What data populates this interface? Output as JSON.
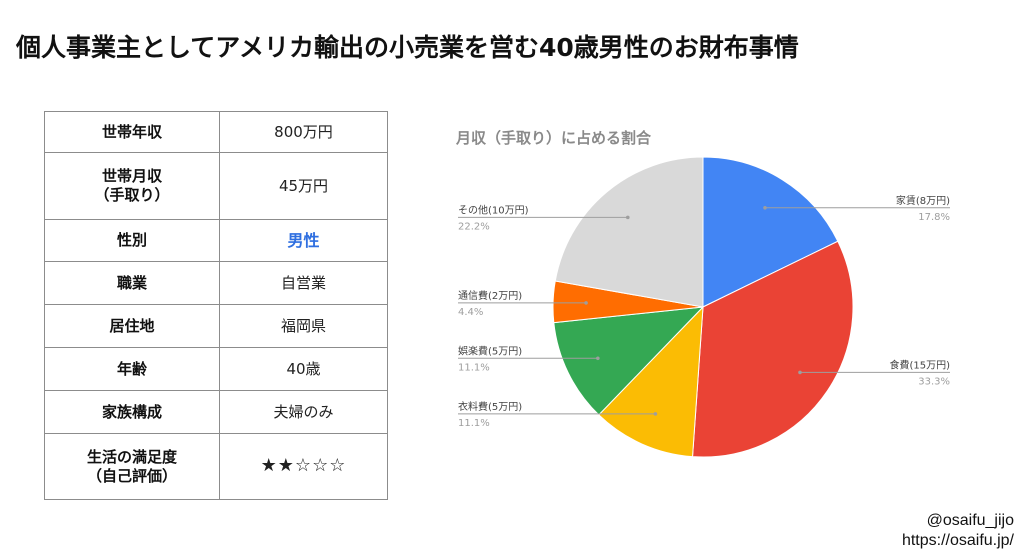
{
  "title": "個人事業主としてアメリカ輸出の小売業を営む40歳男性のお財布事情",
  "profile": {
    "rows": [
      {
        "key": "世帯年収",
        "value": "800万円"
      },
      {
        "key": "世帯月収\n（手取り）",
        "value": "45万円"
      },
      {
        "key": "性別",
        "value": "男性"
      },
      {
        "key": "職業",
        "value": "自営業"
      },
      {
        "key": "居住地",
        "value": "福岡県"
      },
      {
        "key": "年齢",
        "value": "40歳"
      },
      {
        "key": "家族構成",
        "value": "夫婦のみ"
      },
      {
        "key": "生活の満足度\n（自己評価）",
        "value": "★★☆☆☆"
      }
    ]
  },
  "colors": {
    "accent": "#2f6fe0",
    "slices": [
      "#4285f4",
      "#ea4335",
      "#fbbc04",
      "#34a853",
      "#ff6d01",
      "#d9d9d9"
    ]
  },
  "chart_data": {
    "type": "pie",
    "title": "月収（手取り）に占める割合",
    "start": "12 o'clock, clockwise",
    "slices": [
      {
        "label": "家賃(8万円)",
        "value": 8,
        "percent": "17.8%"
      },
      {
        "label": "食費(15万円)",
        "value": 15,
        "percent": "33.3%"
      },
      {
        "label": "衣料費(5万円)",
        "value": 5,
        "percent": "11.1%"
      },
      {
        "label": "娯楽費(5万円)",
        "value": 5,
        "percent": "11.1%"
      },
      {
        "label": "通信費(2万円)",
        "value": 2,
        "percent": "4.4%"
      },
      {
        "label": "その他(10万円)",
        "value": 10,
        "percent": "22.2%"
      }
    ]
  },
  "credit": {
    "handle": "@osaifu_jijo",
    "url": "https://osaifu.jp/"
  }
}
